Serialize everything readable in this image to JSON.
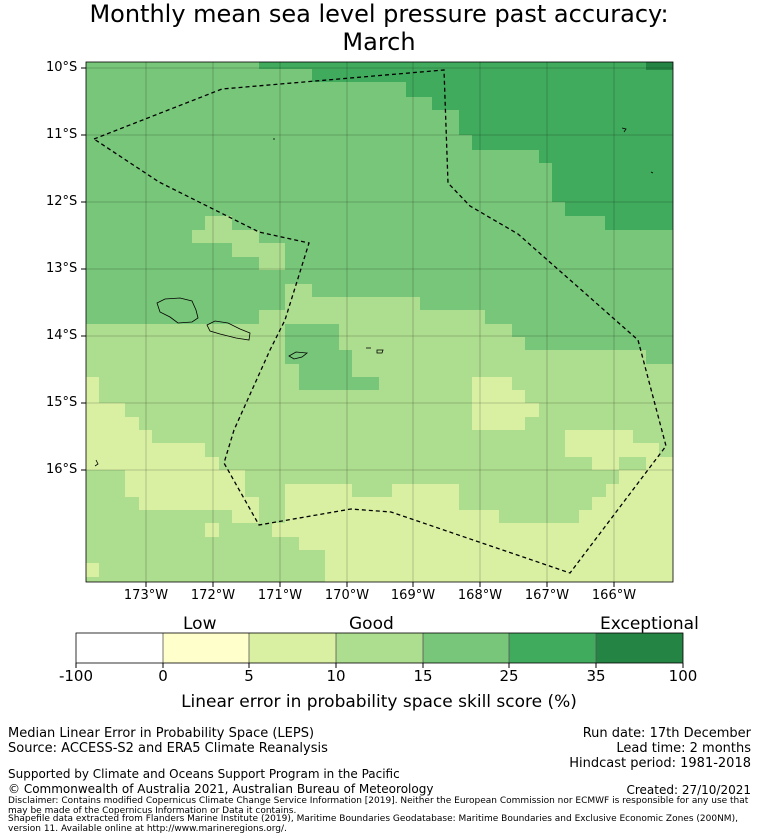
{
  "title": {
    "line1": "Monthly mean sea level pressure past accuracy:",
    "line2": "March"
  },
  "map": {
    "lat_labels": [
      "10°S",
      "11°S",
      "12°S",
      "13°S",
      "14°S",
      "15°S",
      "16°S"
    ],
    "lon_labels": [
      "173°W",
      "172°W",
      "171°W",
      "170°W",
      "169°W",
      "168°W",
      "167°W",
      "166°W"
    ],
    "background_color": "#78c679"
  },
  "colorbar": {
    "categories": [
      "Low",
      "Good",
      "Exceptional"
    ],
    "ticks": [
      "-100",
      "0",
      "5",
      "10",
      "15",
      "25",
      "35",
      "100"
    ],
    "colors": [
      "#ffffff",
      "#ffffcc",
      "#d9f0a3",
      "#addd8e",
      "#78c679",
      "#41ab5d",
      "#238443"
    ],
    "title": "Linear error in probability space skill score (%)"
  },
  "footer": {
    "method": "Median Linear Error in Probability Space (LEPS)",
    "source": "Source: ACCESS-S2 and ERA5 Climate Reanalysis",
    "run_date": "Run date: 17th December",
    "lead_time": "Lead time: 2 months",
    "hindcast": "Hindcast period: 1981-2018",
    "support": "Supported by Climate and Oceans Support Program in the Pacific",
    "copyright": "© Commonwealth of Australia 2021, Australian Bureau of Meteorology",
    "created": "Created: 27/10/2021",
    "disclaimer": "Disclaimer: Contains modified Copernicus Climate Change Service Information [2019]. Neither the European Commission nor ECMWF is responsible for any use that may be made of the Copernicus Information or Data it contains.",
    "shapefile": "Shapefile data extracted from Flanders Marine Institute (2019), Maritime Boundaries Geodatabase: Maritime Boundaries and Exclusive Economic Zones (200NM), version 11. Available online at http://www.marineregions.org/."
  }
}
